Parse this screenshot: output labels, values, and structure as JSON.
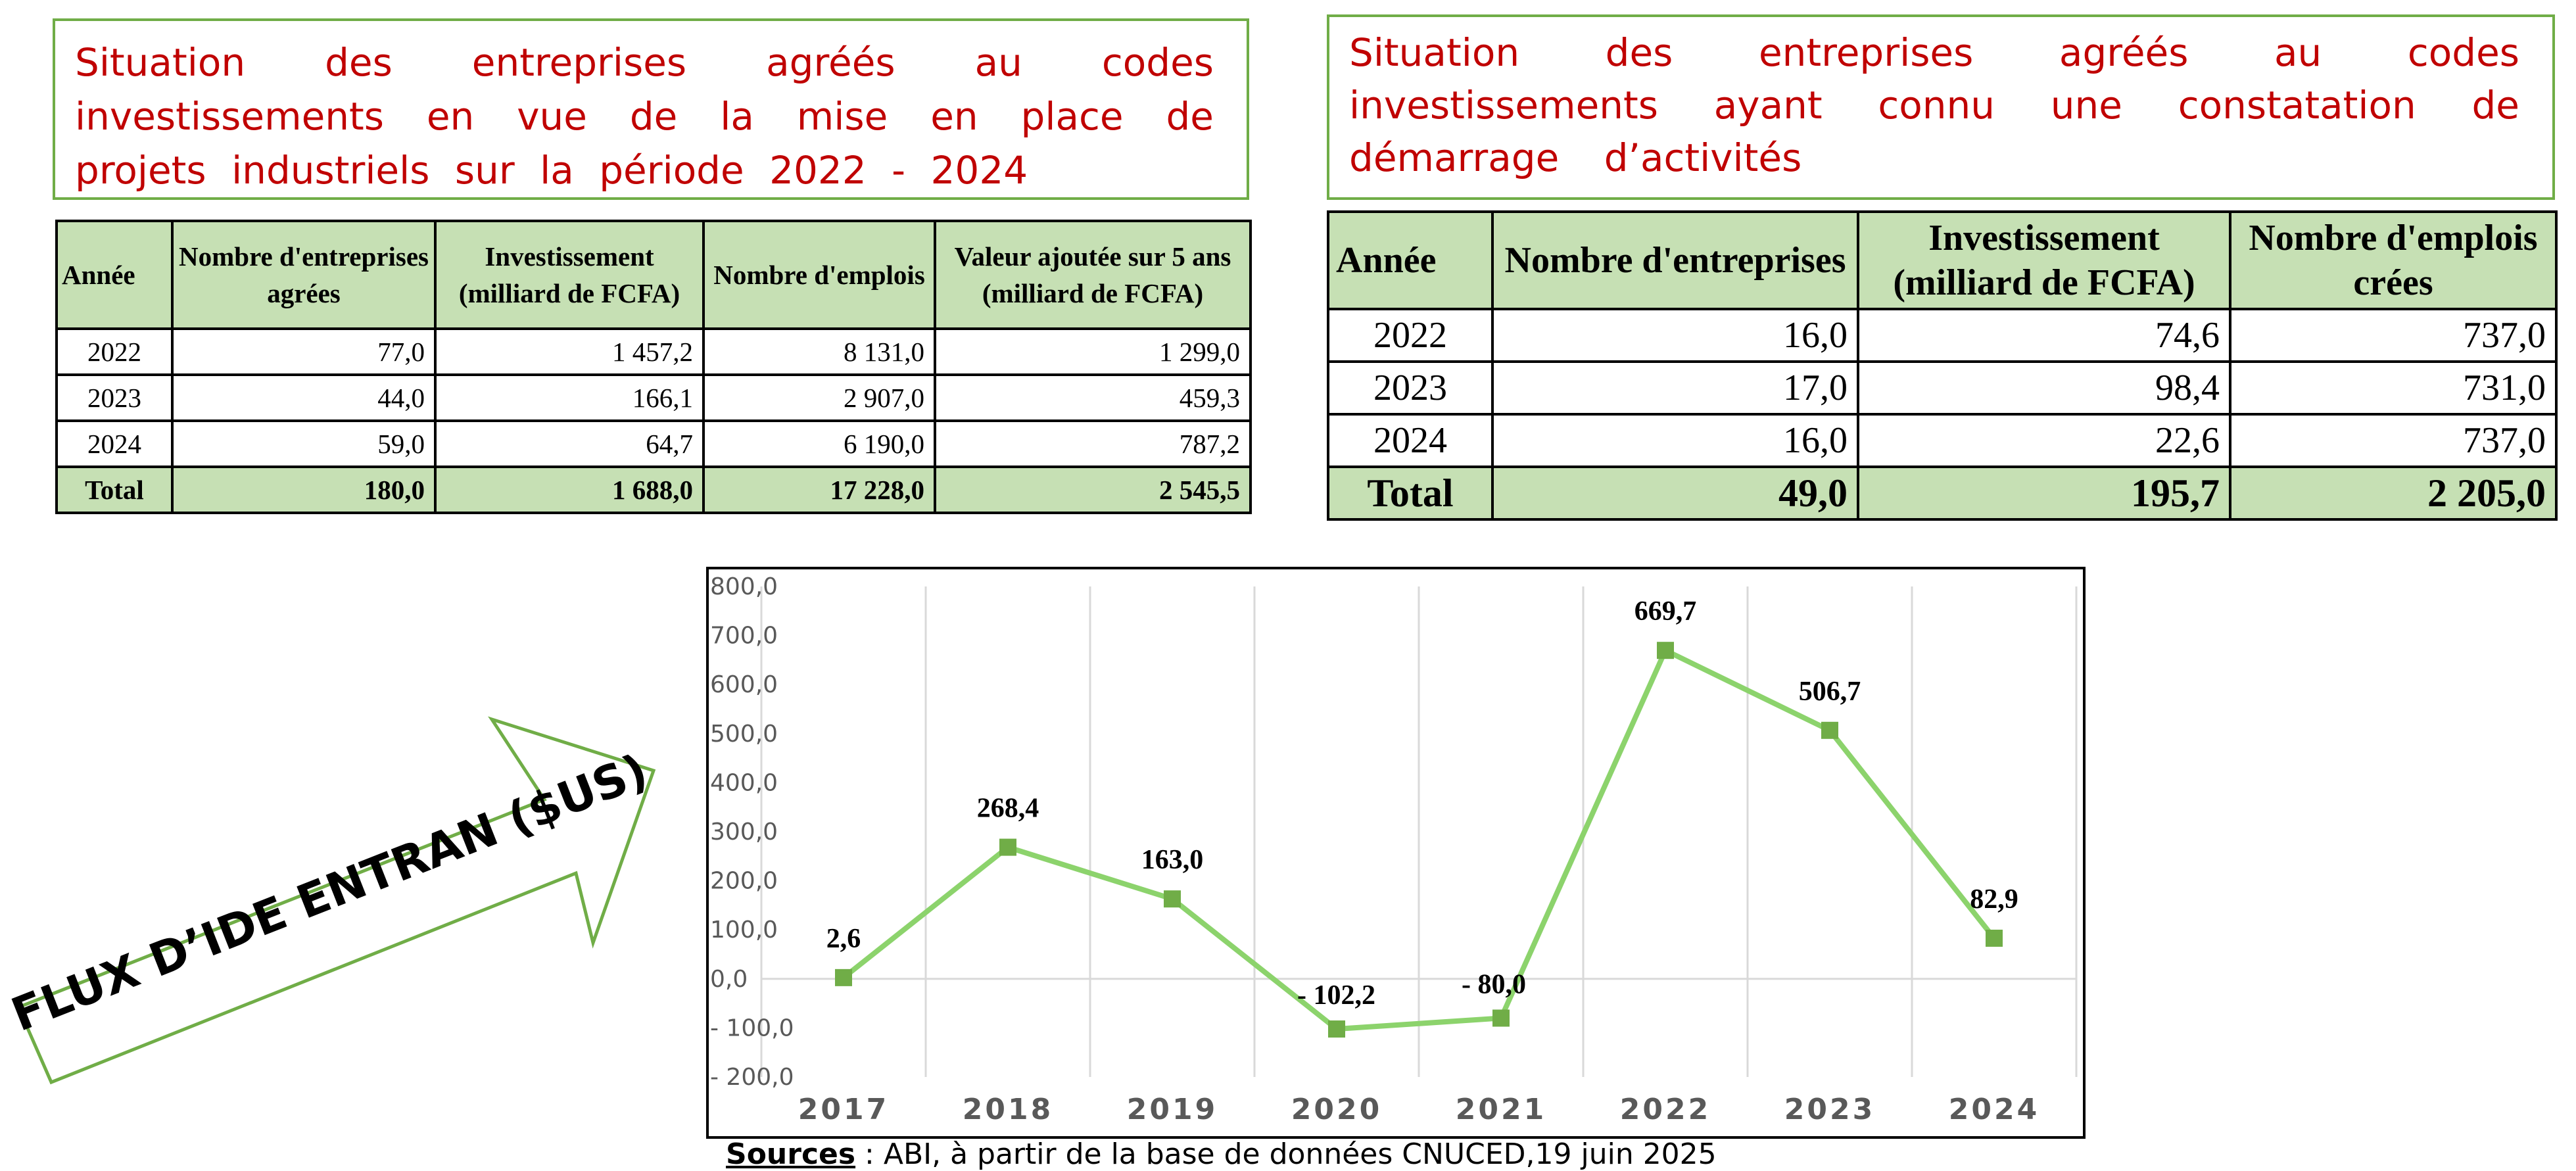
{
  "left_title": {
    "lines": [
      "Situation des entreprises agréés au codes",
      "investissements en vue de la mise en place de",
      "projets industriels sur la période 2022 - 2024"
    ]
  },
  "right_title": {
    "lines": [
      "Situation des entreprises agréés au codes",
      "investissements ayant connu une constatation de",
      "démarrage d’activités"
    ]
  },
  "left_table": {
    "headers": [
      "Année",
      "Nombre d'entreprises agrées",
      "Investissement (milliard de FCFA)",
      "Nombre d'emplois",
      "Valeur ajoutée sur 5 ans (milliard de FCFA)"
    ],
    "rows": [
      [
        "2022",
        "77,0",
        "1 457,2",
        "8 131,0",
        "1 299,0"
      ],
      [
        "2023",
        "44,0",
        "166,1",
        "2 907,0",
        "459,3"
      ],
      [
        "2024",
        "59,0",
        "64,7",
        "6 190,0",
        "787,2"
      ]
    ],
    "total": [
      "Total",
      "180,0",
      "1 688,0",
      "17 228,0",
      "2 545,5"
    ]
  },
  "right_table": {
    "headers": [
      "Année",
      "Nombre d'entreprises",
      "Investissement (milliard de FCFA)",
      "Nombre d'emplois crées"
    ],
    "rows": [
      [
        "2022",
        "16,0",
        "74,6",
        "737,0"
      ],
      [
        "2023",
        "17,0",
        "98,4",
        "731,0"
      ],
      [
        "2024",
        "16,0",
        "22,6",
        "737,0"
      ]
    ],
    "total": [
      "Total",
      "49,0",
      "195,7",
      "2 205,0"
    ]
  },
  "arrow_label": "FLUX D’IDE ENTRAN ($US)",
  "chart_data": {
    "type": "line",
    "title": "FLUX D’IDE ENTRAN ($US)",
    "categories": [
      "2017",
      "2018",
      "2019",
      "2020",
      "2021",
      "2022",
      "2023",
      "2024"
    ],
    "series": [
      {
        "values": [
          2.6,
          268.4,
          163.0,
          -102.2,
          -80.0,
          669.7,
          506.7,
          82.9
        ]
      }
    ],
    "data_labels": [
      "2,6",
      "268,4",
      "163,0",
      "-  102,2",
      "-  80,0",
      "669,7",
      "506,7",
      "82,9"
    ],
    "ylim": [
      -200,
      800
    ],
    "ytick_labels": [
      "800,0",
      "700,0",
      "600,0",
      "500,0",
      "400,0",
      "300,0",
      "200,0",
      "100,0",
      "0,0",
      "-  100,0",
      "-  200,0"
    ],
    "grid": "vertical",
    "line_color": "#8cd36c",
    "marker_color": "#70ad47"
  },
  "sources": {
    "label": "Sources",
    "text": " : ABI, à partir de la base de données CNUCED,19 juin 2025"
  }
}
